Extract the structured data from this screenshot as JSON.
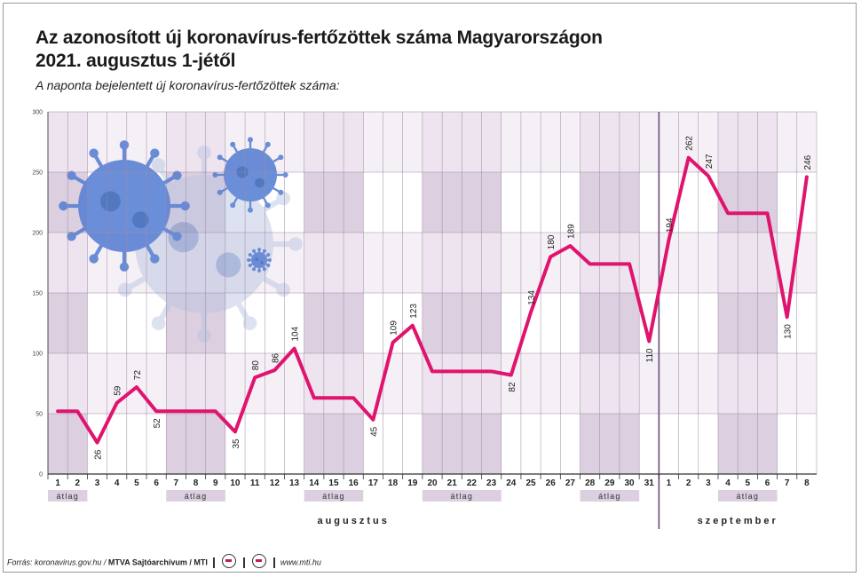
{
  "title_line1": "Az azonosított új koronavírus-fertőzöttek száma Magyarországon",
  "title_line2": "2021. augusztus 1-jétől",
  "subtitle": "A naponta bejelentett új koronavírus-fertőzöttek száma:",
  "footer": {
    "source": "Forrás: koronavirus.gov.hu / ",
    "agency": "MTVA Sajtóarchívum / MTI",
    "web": "www.mti.hu"
  },
  "colors": {
    "line": "#e0146e",
    "shade": "#dccfe0",
    "shade_light": "#ede4ef",
    "grid": "#9d8aa5",
    "axis": "#333333",
    "separator": "#6b4e7a"
  },
  "icons": [
    "coronavirus-illustration",
    "mtva-logo-icon",
    "mti-logo-icon"
  ],
  "chart_data": {
    "type": "line",
    "title": "Az azonosított új koronavírus-fertőzöttek száma Magyarországon 2021. augusztus 1-jétől",
    "ylabel": "A naponta bejelentett új koronavírus-fertőzöttek száma:",
    "ylim": [
      0,
      300
    ],
    "yticks": [
      0,
      50,
      100,
      150,
      200,
      250,
      300
    ],
    "grid": true,
    "x": [
      "1",
      "2",
      "3",
      "4",
      "5",
      "6",
      "7",
      "8",
      "9",
      "10",
      "11",
      "12",
      "13",
      "14",
      "15",
      "16",
      "17",
      "18",
      "19",
      "20",
      "21",
      "22",
      "23",
      "24",
      "25",
      "26",
      "27",
      "28",
      "29",
      "30",
      "31",
      "1",
      "2",
      "3",
      "4",
      "5",
      "6",
      "7",
      "8"
    ],
    "values": [
      52,
      52,
      26,
      59,
      72,
      52,
      52,
      52,
      52,
      35,
      80,
      86,
      104,
      63,
      63,
      63,
      45,
      109,
      123,
      85,
      85,
      85,
      85,
      82,
      134,
      180,
      189,
      174,
      174,
      174,
      110,
      194,
      262,
      247,
      216,
      216,
      216,
      130,
      246
    ],
    "labeled": [
      false,
      false,
      true,
      true,
      true,
      true,
      false,
      false,
      false,
      true,
      true,
      true,
      true,
      false,
      false,
      false,
      true,
      true,
      true,
      false,
      false,
      false,
      false,
      true,
      true,
      true,
      true,
      false,
      false,
      false,
      true,
      true,
      true,
      true,
      false,
      false,
      false,
      true,
      true
    ],
    "averaged_ranges": [
      [
        0,
        1
      ],
      [
        6,
        8
      ],
      [
        13,
        15
      ],
      [
        19,
        22
      ],
      [
        27,
        29
      ],
      [
        34,
        36
      ]
    ],
    "average_label": "átlag",
    "months": [
      {
        "name": "augusztus",
        "start": 0,
        "end": 30
      },
      {
        "name": "szeptember",
        "start": 31,
        "end": 38
      }
    ]
  }
}
